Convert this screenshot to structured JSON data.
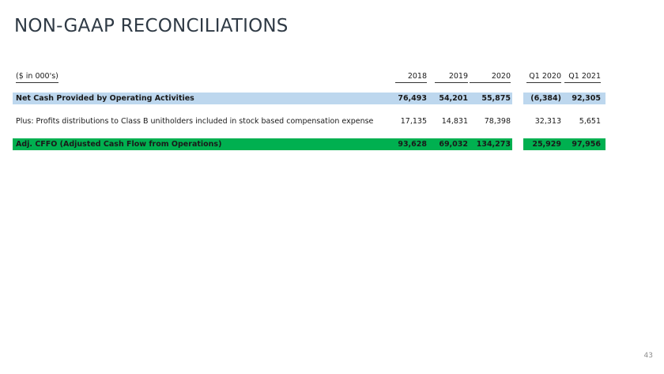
{
  "page": {
    "title": "NON-GAAP RECONCILIATIONS",
    "slide_number": "43"
  },
  "table": {
    "unit_label": "($ in 000's)",
    "columns": [
      "2018",
      "2019",
      "2020",
      "Q1 2020",
      "Q1 2021"
    ],
    "rows": [
      {
        "label": "Net Cash Provided by Operating Activities",
        "values": [
          "76,493",
          "54,201",
          "55,875",
          "(6,384)",
          "92,305"
        ],
        "highlight": "#bdd7ee"
      },
      {
        "label": "Plus:  Profits distributions to Class B unitholders included in stock based compensation expense",
        "values": [
          "17,135",
          "14,831",
          "78,398",
          "32,313",
          "5,651"
        ],
        "highlight": ""
      },
      {
        "label": "Adj. CFFO (Adjusted Cash Flow from Operations)",
        "values": [
          "93,628",
          "69,032",
          "134,273",
          "25,929",
          "97,956"
        ],
        "highlight": "#00b050"
      }
    ]
  }
}
